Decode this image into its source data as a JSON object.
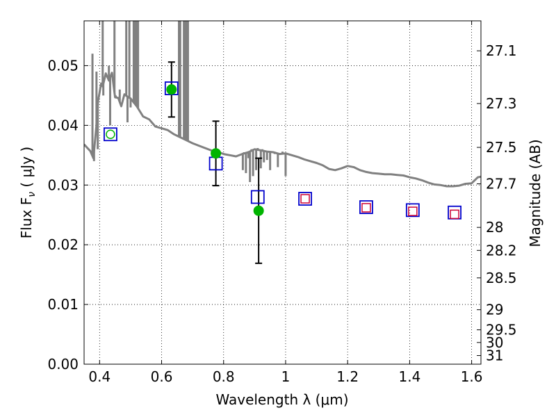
{
  "chart_data": {
    "type": "scatter",
    "xlabel": "Wavelength  λ (μm)",
    "ylabel": "Flux  F",
    "ylabel_sub": "ν",
    "ylabel_unit": "  ( μJy )",
    "y2label": "Magnitude (AB)",
    "xlim": [
      0.35,
      1.63
    ],
    "ylim": [
      0.0,
      0.0575
    ],
    "grid": true,
    "x_ticks": [
      0.4,
      0.6,
      0.8,
      1.0,
      1.2,
      1.4,
      1.6
    ],
    "x_tick_labels": [
      "0.4",
      "0.6",
      "0.8",
      "1",
      "1.2",
      "1.4",
      "1.6"
    ],
    "y_ticks": [
      0.0,
      0.01,
      0.02,
      0.03,
      0.04,
      0.05
    ],
    "y_tick_labels": [
      "0.00",
      "0.01",
      "0.02",
      "0.03",
      "0.04",
      "0.05"
    ],
    "y2_ticks": [
      27.1,
      27.3,
      27.5,
      27.7,
      28,
      28.2,
      28.5,
      29,
      29.5,
      30,
      31
    ],
    "y2_tick_labels": [
      "27.1",
      "27.3",
      "27.5",
      "27.7",
      "28",
      "28.2",
      "28.5",
      "29",
      "29.5",
      "30",
      "31"
    ],
    "y2_zero_point_ujy": 3631000000,
    "series": [
      {
        "type": "line",
        "color": "#808080",
        "points": [
          [
            0.35,
            0.0368
          ],
          [
            0.37,
            0.0357
          ],
          [
            0.38,
            0.0345
          ],
          [
            0.39,
            0.04
          ],
          [
            0.395,
            0.0441
          ],
          [
            0.4,
            0.0455
          ],
          [
            0.405,
            0.047
          ],
          [
            0.41,
            0.0465
          ],
          [
            0.42,
            0.0487
          ],
          [
            0.43,
            0.0475
          ],
          [
            0.44,
            0.0488
          ],
          [
            0.45,
            0.0447
          ],
          [
            0.46,
            0.0446
          ],
          [
            0.47,
            0.0432
          ],
          [
            0.48,
            0.0452
          ],
          [
            0.49,
            0.0448
          ],
          [
            0.5,
            0.0445
          ],
          [
            0.52,
            0.0432
          ],
          [
            0.54,
            0.0415
          ],
          [
            0.56,
            0.041
          ],
          [
            0.58,
            0.0398
          ],
          [
            0.6,
            0.0395
          ],
          [
            0.62,
            0.0392
          ],
          [
            0.64,
            0.0385
          ],
          [
            0.66,
            0.038
          ],
          [
            0.68,
            0.0375
          ],
          [
            0.7,
            0.037
          ],
          [
            0.72,
            0.0366
          ],
          [
            0.74,
            0.0362
          ],
          [
            0.76,
            0.0358
          ],
          [
            0.78,
            0.0356
          ],
          [
            0.8,
            0.0352
          ],
          [
            0.82,
            0.035
          ],
          [
            0.84,
            0.0348
          ],
          [
            0.86,
            0.0352
          ],
          [
            0.88,
            0.0355
          ],
          [
            0.9,
            0.036
          ],
          [
            0.92,
            0.0358
          ],
          [
            0.94,
            0.0356
          ],
          [
            0.96,
            0.0355
          ],
          [
            0.98,
            0.0352
          ],
          [
            1.0,
            0.0353
          ],
          [
            1.02,
            0.035
          ],
          [
            1.04,
            0.0347
          ],
          [
            1.06,
            0.0343
          ],
          [
            1.08,
            0.034
          ],
          [
            1.1,
            0.0337
          ],
          [
            1.12,
            0.0333
          ],
          [
            1.14,
            0.0327
          ],
          [
            1.16,
            0.0325
          ],
          [
            1.18,
            0.0328
          ],
          [
            1.2,
            0.0332
          ],
          [
            1.22,
            0.033
          ],
          [
            1.24,
            0.0325
          ],
          [
            1.26,
            0.0322
          ],
          [
            1.28,
            0.032
          ],
          [
            1.3,
            0.0319
          ],
          [
            1.32,
            0.0318
          ],
          [
            1.34,
            0.0318
          ],
          [
            1.36,
            0.0317
          ],
          [
            1.38,
            0.0316
          ],
          [
            1.4,
            0.0313
          ],
          [
            1.42,
            0.0311
          ],
          [
            1.44,
            0.0308
          ],
          [
            1.46,
            0.0304
          ],
          [
            1.48,
            0.0301
          ],
          [
            1.5,
            0.03
          ],
          [
            1.52,
            0.0298
          ],
          [
            1.54,
            0.0298
          ],
          [
            1.56,
            0.0299
          ],
          [
            1.58,
            0.0302
          ],
          [
            1.6,
            0.0303
          ],
          [
            1.62,
            0.0313
          ],
          [
            1.63,
            0.0314
          ]
        ],
        "spikes": [
          {
            "x": 0.377,
            "y": 0.052
          },
          {
            "x": 0.382,
            "y": 0.034
          },
          {
            "x": 0.39,
            "y": 0.049
          },
          {
            "x": 0.394,
            "y": 0.036
          },
          {
            "x": 0.41,
            "y": 0.0575
          },
          {
            "x": 0.412,
            "y": 0.045
          },
          {
            "x": 0.43,
            "y": 0.05
          },
          {
            "x": 0.434,
            "y": 0.04
          },
          {
            "x": 0.448,
            "y": 0.0575
          },
          {
            "x": 0.452,
            "y": 0.045
          },
          {
            "x": 0.465,
            "y": 0.046
          },
          {
            "x": 0.486,
            "y": 0.0575
          },
          {
            "x": 0.49,
            "y": 0.0405
          },
          {
            "x": 0.496,
            "y": 0.0575
          },
          {
            "x": 0.5,
            "y": 0.043
          },
          {
            "x": 0.51,
            "y": 0.0575
          },
          {
            "x": 0.515,
            "y": 0.0575
          },
          {
            "x": 0.52,
            "y": 0.0575
          },
          {
            "x": 0.524,
            "y": 0.0575
          },
          {
            "x": 0.656,
            "y": 0.0575
          },
          {
            "x": 0.66,
            "y": 0.0575
          },
          {
            "x": 0.672,
            "y": 0.0575
          },
          {
            "x": 0.676,
            "y": 0.0575
          },
          {
            "x": 0.68,
            "y": 0.0575
          },
          {
            "x": 0.685,
            "y": 0.0575
          },
          {
            "x": 0.862,
            "y": 0.0325
          },
          {
            "x": 0.866,
            "y": 0.0355
          },
          {
            "x": 0.872,
            "y": 0.032
          },
          {
            "x": 0.88,
            "y": 0.0345
          },
          {
            "x": 0.885,
            "y": 0.0305
          },
          {
            "x": 0.89,
            "y": 0.036
          },
          {
            "x": 0.895,
            "y": 0.0315
          },
          {
            "x": 0.9,
            "y": 0.036
          },
          {
            "x": 0.905,
            "y": 0.0325
          },
          {
            "x": 0.91,
            "y": 0.0362
          },
          {
            "x": 0.92,
            "y": 0.0328
          },
          {
            "x": 0.925,
            "y": 0.036
          },
          {
            "x": 0.93,
            "y": 0.0338
          },
          {
            "x": 0.94,
            "y": 0.0342
          },
          {
            "x": 0.95,
            "y": 0.0325
          },
          {
            "x": 0.965,
            "y": 0.0352
          },
          {
            "x": 0.975,
            "y": 0.033
          },
          {
            "x": 0.99,
            "y": 0.0356
          },
          {
            "x": 1.0,
            "y": 0.0315
          }
        ]
      },
      {
        "type": "errorbar",
        "color": "#00b400",
        "points": [
          {
            "x": 0.435,
            "y": 0.0385,
            "err": 0.0
          },
          {
            "x": 0.632,
            "y": 0.046,
            "err": 0.0046
          },
          {
            "x": 0.775,
            "y": 0.0353,
            "err": 0.0054
          },
          {
            "x": 0.913,
            "y": 0.0257,
            "err": 0.0088
          }
        ]
      },
      {
        "type": "scatter",
        "marker": "square",
        "color": "#0000cc",
        "points": [
          [
            0.435,
            0.0385
          ],
          [
            0.632,
            0.0462
          ],
          [
            0.775,
            0.0336
          ],
          [
            0.91,
            0.028
          ],
          [
            1.063,
            0.0277
          ],
          [
            1.26,
            0.0263
          ],
          [
            1.41,
            0.0258
          ],
          [
            1.545,
            0.0254
          ]
        ]
      },
      {
        "type": "scatter",
        "marker": "square",
        "color": "#cc0033",
        "points": [
          [
            1.063,
            0.0277
          ],
          [
            1.26,
            0.0262
          ],
          [
            1.41,
            0.0256
          ],
          [
            1.545,
            0.0251
          ]
        ]
      }
    ]
  }
}
